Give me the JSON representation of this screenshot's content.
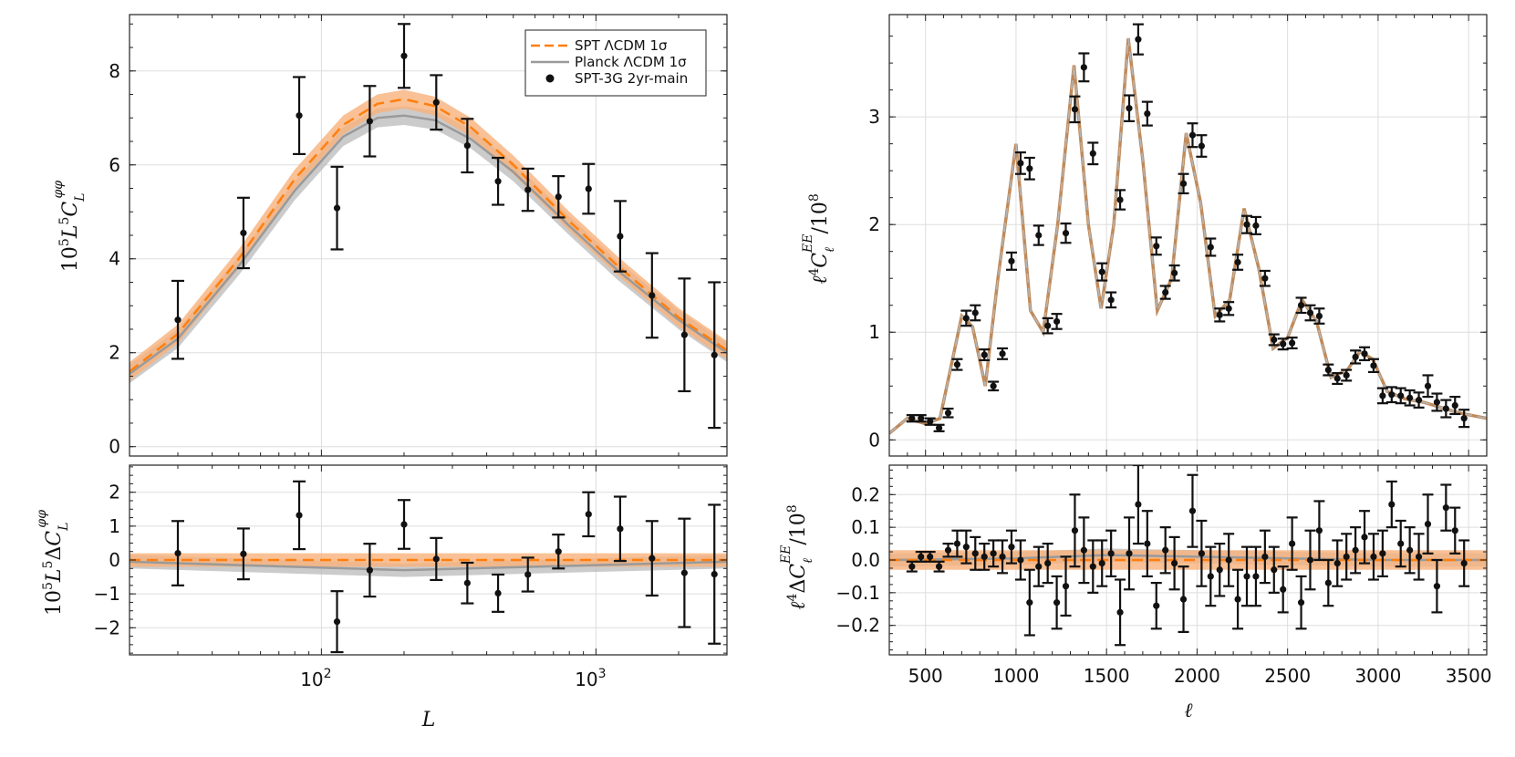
{
  "colors": {
    "spt": "#ff7f0e",
    "spt_band": "#f8b27a",
    "planck": "#9a9a9a",
    "planck_band": "#b9b9b9",
    "data": "#111111",
    "grid": "#dddddd"
  },
  "chart_data": [
    {
      "type": "line",
      "panel": "lensing-main",
      "xscale": "log",
      "xlim": [
        20,
        3000
      ],
      "ylim": [
        -0.2,
        9.2
      ],
      "yticks": [
        0,
        2,
        4,
        6,
        8
      ],
      "xticks": [
        "10^2",
        "10^3"
      ],
      "ylabel": "10^5 L^5 C_L^{φφ}",
      "legend": {
        "position": "top-right",
        "entries": [
          "SPT ΛCDM 1σ",
          "Planck ΛCDM 1σ",
          "SPT-3G 2yr-main"
        ]
      },
      "series": [
        {
          "name": "SPT ΛCDM 1σ",
          "x": [
            20,
            30,
            50,
            80,
            120,
            160,
            200,
            260,
            350,
            500,
            800,
            1200,
            2000,
            3000
          ],
          "y": [
            1.6,
            2.4,
            4.0,
            5.7,
            6.85,
            7.3,
            7.4,
            7.25,
            6.8,
            6.0,
            4.8,
            3.85,
            2.75,
            2.05
          ],
          "band": 0.2
        },
        {
          "name": "Planck ΛCDM 1σ",
          "x": [
            20,
            30,
            50,
            80,
            120,
            160,
            200,
            260,
            350,
            500,
            800,
            1200,
            2000,
            3000
          ],
          "y": [
            1.55,
            2.3,
            3.85,
            5.45,
            6.6,
            7.0,
            7.05,
            6.95,
            6.55,
            5.85,
            4.7,
            3.75,
            2.7,
            2.0
          ],
          "band": 0.2
        },
        {
          "name": "SPT-3G 2yr-main",
          "kind": "errorbar",
          "x": [
            30,
            52,
            83,
            114,
            150,
            200,
            262,
            340,
            440,
            565,
            730,
            940,
            1225,
            1600,
            2100,
            2700
          ],
          "y": [
            2.7,
            4.55,
            7.05,
            5.08,
            6.93,
            8.32,
            7.33,
            6.41,
            5.65,
            5.47,
            5.32,
            5.49,
            4.48,
            3.22,
            2.38,
            1.95
          ],
          "err": [
            0.83,
            0.75,
            0.82,
            0.88,
            0.75,
            0.68,
            0.58,
            0.57,
            0.5,
            0.45,
            0.44,
            0.53,
            0.75,
            0.9,
            1.2,
            1.55
          ]
        }
      ]
    },
    {
      "type": "line",
      "panel": "lensing-residual",
      "xscale": "log",
      "xlim": [
        20,
        3000
      ],
      "ylim": [
        -2.8,
        2.8
      ],
      "yticks": [
        -2,
        -1,
        0,
        1,
        2
      ],
      "xticks": [
        "10^2",
        "10^3"
      ],
      "xlabel": "L",
      "ylabel": "10^5 L^5 ΔC_L^{φφ}",
      "series": [
        {
          "name": "SPT ΛCDM 1σ",
          "x": [
            20,
            3000
          ],
          "y": [
            0,
            0
          ],
          "band": 0.2
        },
        {
          "name": "Planck ΛCDM 1σ",
          "x": [
            20,
            200,
            3000
          ],
          "y": [
            -0.05,
            -0.3,
            -0.05
          ],
          "band": 0.2
        },
        {
          "name": "SPT-3G 2yr-main",
          "kind": "errorbar",
          "x": [
            30,
            52,
            83,
            114,
            150,
            200,
            262,
            340,
            440,
            565,
            730,
            940,
            1225,
            1600,
            2100,
            2700
          ],
          "y": [
            0.2,
            0.18,
            1.32,
            -1.82,
            -0.3,
            1.05,
            0.03,
            -0.68,
            -0.98,
            -0.43,
            0.25,
            1.35,
            0.92,
            0.05,
            -0.38,
            -0.42
          ],
          "err": [
            0.95,
            0.75,
            1.0,
            0.9,
            0.78,
            0.72,
            0.62,
            0.6,
            0.55,
            0.5,
            0.5,
            0.65,
            0.95,
            1.1,
            1.6,
            2.05
          ]
        }
      ]
    },
    {
      "type": "line",
      "panel": "ee-main",
      "xlim": [
        300,
        3600
      ],
      "ylim": [
        -0.15,
        3.95
      ],
      "yticks": [
        0,
        1,
        2,
        3
      ],
      "xticks": [
        500,
        1000,
        1500,
        2000,
        2500,
        3000,
        3500
      ],
      "ylabel": "ℓ^4 C_ℓ^{EE} / 10^8",
      "series": [
        {
          "name": "SPT ΛCDM 1σ",
          "x": [
            300,
            400,
            500,
            580,
            700,
            760,
            830,
            900,
            1000,
            1080,
            1150,
            1230,
            1320,
            1400,
            1470,
            1540,
            1620,
            1700,
            1780,
            1860,
            1940,
            2020,
            2100,
            2180,
            2260,
            2340,
            2420,
            2500,
            2580,
            2660,
            2740,
            2830,
            2900,
            2970,
            3050,
            3150,
            3250,
            3350,
            3450,
            3600
          ],
          "y": [
            0.06,
            0.2,
            0.15,
            0.2,
            1.15,
            1.05,
            0.5,
            1.5,
            2.75,
            1.2,
            1.0,
            2.0,
            3.48,
            2.0,
            1.22,
            2.0,
            3.73,
            2.6,
            1.2,
            1.5,
            2.85,
            2.2,
            1.15,
            1.3,
            2.15,
            1.6,
            0.85,
            0.95,
            1.3,
            1.1,
            0.58,
            0.65,
            0.82,
            0.75,
            0.45,
            0.38,
            0.35,
            0.3,
            0.25,
            0.2
          ]
        },
        {
          "name": "SPT-3G 2yr-main",
          "kind": "errorbar",
          "x": [
            425,
            475,
            525,
            575,
            625,
            675,
            725,
            775,
            825,
            875,
            925,
            975,
            1025,
            1075,
            1125,
            1175,
            1225,
            1275,
            1325,
            1375,
            1425,
            1475,
            1525,
            1575,
            1625,
            1675,
            1725,
            1775,
            1825,
            1875,
            1925,
            1975,
            2025,
            2075,
            2125,
            2175,
            2225,
            2275,
            2325,
            2375,
            2425,
            2475,
            2525,
            2575,
            2625,
            2675,
            2725,
            2775,
            2825,
            2875,
            2925,
            2975,
            3025,
            3075,
            3125,
            3175,
            3225,
            3275,
            3325,
            3375,
            3425,
            3475
          ],
          "y": [
            0.2,
            0.2,
            0.17,
            0.11,
            0.25,
            0.7,
            1.13,
            1.18,
            0.79,
            0.5,
            0.8,
            1.66,
            2.57,
            2.52,
            1.9,
            1.06,
            1.1,
            1.92,
            3.07,
            3.46,
            2.66,
            1.56,
            1.3,
            2.23,
            3.08,
            3.72,
            3.03,
            1.8,
            1.37,
            1.55,
            2.38,
            2.83,
            2.73,
            1.79,
            1.16,
            1.22,
            1.65,
            2.0,
            1.99,
            1.5,
            0.93,
            0.89,
            0.9,
            1.25,
            1.18,
            1.15,
            0.65,
            0.57,
            0.6,
            0.77,
            0.8,
            0.69,
            0.41,
            0.42,
            0.41,
            0.39,
            0.37,
            0.5,
            0.35,
            0.29,
            0.32,
            0.2
          ],
          "err": [
            0.03,
            0.03,
            0.03,
            0.03,
            0.04,
            0.05,
            0.07,
            0.07,
            0.05,
            0.04,
            0.05,
            0.08,
            0.1,
            0.1,
            0.09,
            0.07,
            0.07,
            0.09,
            0.12,
            0.13,
            0.1,
            0.08,
            0.07,
            0.09,
            0.12,
            0.14,
            0.11,
            0.08,
            0.06,
            0.07,
            0.09,
            0.11,
            0.1,
            0.08,
            0.06,
            0.06,
            0.07,
            0.08,
            0.08,
            0.07,
            0.05,
            0.05,
            0.05,
            0.07,
            0.07,
            0.07,
            0.05,
            0.05,
            0.05,
            0.06,
            0.06,
            0.06,
            0.07,
            0.07,
            0.07,
            0.07,
            0.07,
            0.1,
            0.08,
            0.08,
            0.08,
            0.08
          ]
        }
      ]
    },
    {
      "type": "line",
      "panel": "ee-residual",
      "xlim": [
        300,
        3600
      ],
      "ylim": [
        -0.29,
        0.29
      ],
      "yticks": [
        -0.2,
        -0.1,
        0.0,
        0.1,
        0.2
      ],
      "xticks": [
        500,
        1000,
        1500,
        2000,
        2500,
        3000,
        3500
      ],
      "xlabel": "ℓ",
      "ylabel": "ℓ^4 ΔC_ℓ^{EE} / 10^8",
      "series": [
        {
          "name": "SPT ΛCDM 1σ",
          "x": [
            300,
            3600
          ],
          "y": [
            0,
            0
          ],
          "band": 0.03
        },
        {
          "name": "Planck ΛCDM 1σ",
          "x": [
            300,
            1000,
            1500,
            2000,
            2500,
            3000,
            3600
          ],
          "y": [
            0,
            0.005,
            0.015,
            0.01,
            0.005,
            0.0,
            0.0
          ],
          "band": 0.02
        },
        {
          "name": "SPT-3G 2yr-main",
          "kind": "errorbar",
          "x": [
            425,
            475,
            525,
            575,
            625,
            675,
            725,
            775,
            825,
            875,
            925,
            975,
            1025,
            1075,
            1125,
            1175,
            1225,
            1275,
            1325,
            1375,
            1425,
            1475,
            1525,
            1575,
            1625,
            1675,
            1725,
            1775,
            1825,
            1875,
            1925,
            1975,
            2025,
            2075,
            2125,
            2175,
            2225,
            2275,
            2325,
            2375,
            2425,
            2475,
            2525,
            2575,
            2625,
            2675,
            2725,
            2775,
            2825,
            2875,
            2925,
            2975,
            3025,
            3075,
            3125,
            3175,
            3225,
            3275,
            3325,
            3375,
            3425,
            3475
          ],
          "y": [
            -0.02,
            0.01,
            0.01,
            -0.02,
            0.03,
            0.05,
            0.04,
            0.02,
            0.01,
            0.02,
            0.01,
            0.04,
            0.0,
            -0.13,
            -0.02,
            -0.01,
            -0.13,
            -0.08,
            0.09,
            0.03,
            -0.02,
            -0.01,
            0.02,
            -0.16,
            0.02,
            0.17,
            0.05,
            -0.14,
            0.03,
            -0.01,
            -0.12,
            0.15,
            0.02,
            -0.05,
            -0.03,
            0.0,
            -0.12,
            -0.05,
            -0.05,
            0.01,
            -0.03,
            -0.09,
            0.05,
            -0.13,
            0.0,
            0.09,
            -0.07,
            -0.01,
            0.01,
            0.03,
            0.07,
            0.01,
            0.02,
            0.17,
            0.05,
            0.03,
            0.01,
            0.11,
            -0.08,
            0.16,
            0.09,
            -0.01
          ],
          "err": [
            0.015,
            0.015,
            0.015,
            0.015,
            0.02,
            0.04,
            0.05,
            0.05,
            0.04,
            0.04,
            0.05,
            0.05,
            0.06,
            0.1,
            0.06,
            0.06,
            0.08,
            0.09,
            0.11,
            0.1,
            0.08,
            0.07,
            0.07,
            0.1,
            0.11,
            0.12,
            0.1,
            0.07,
            0.07,
            0.08,
            0.1,
            0.11,
            0.1,
            0.09,
            0.08,
            0.08,
            0.09,
            0.09,
            0.09,
            0.08,
            0.07,
            0.07,
            0.08,
            0.08,
            0.09,
            0.09,
            0.07,
            0.07,
            0.07,
            0.07,
            0.08,
            0.07,
            0.07,
            0.07,
            0.07,
            0.07,
            0.07,
            0.09,
            0.08,
            0.07,
            0.07,
            0.07
          ]
        }
      ]
    }
  ]
}
